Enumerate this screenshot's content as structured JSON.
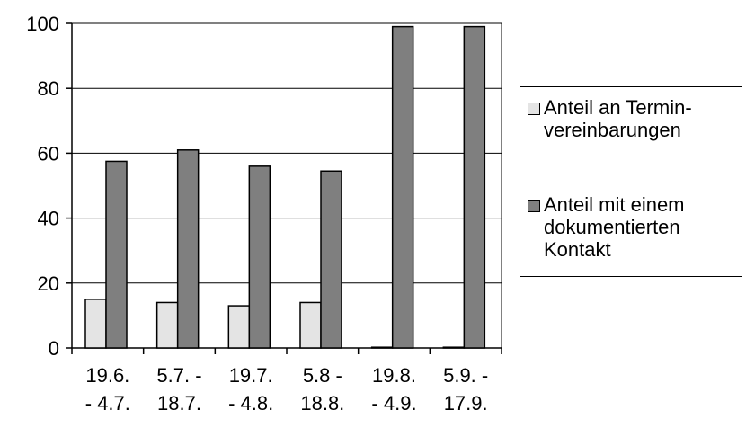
{
  "chart_data": {
    "type": "bar",
    "categories": [
      "19.6.\n- 4.7.",
      "5.7. -\n18.7.",
      "19.7.\n- 4.8.",
      "5.8 -\n18.8.",
      "19.8.\n- 4.9.",
      "5.9. -\n17.9."
    ],
    "series": [
      {
        "name": "Anteil an Termin-\nvereinbarungen",
        "values": [
          15,
          14,
          13,
          14,
          0,
          0
        ],
        "color": "#e4e4e4"
      },
      {
        "name": "Anteil mit einem\ndokumentierten\nKontakt",
        "values": [
          57.5,
          61,
          56,
          54.5,
          99,
          99
        ],
        "color": "#7f7f7f"
      }
    ],
    "yticks": [
      0,
      20,
      40,
      60,
      80,
      100
    ],
    "ylim": [
      0,
      100
    ],
    "grid": true,
    "legend_position": "right",
    "title": "",
    "xlabel": "",
    "ylabel": ""
  }
}
